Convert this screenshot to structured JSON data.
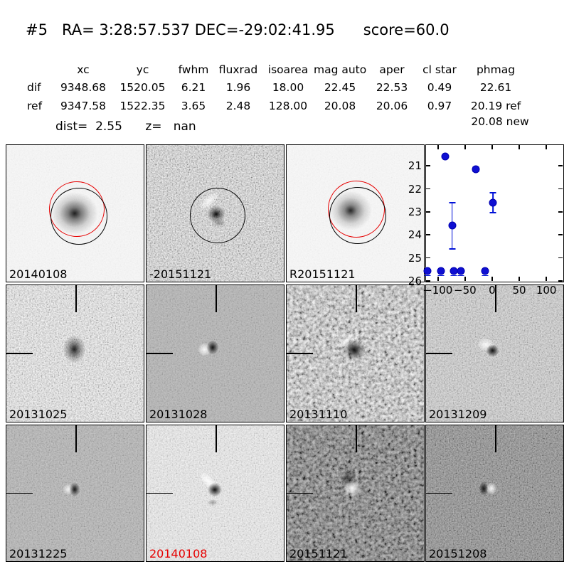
{
  "header": {
    "title": "#5   RA= 3:28:57.537 DEC=-29:02:41.95      score=60.0"
  },
  "table": {
    "columns": [
      "xc",
      "yc",
      "fwhm",
      "fluxrad",
      "isoarea",
      "mag auto",
      "aper",
      "cl star",
      "phmag"
    ],
    "rows": [
      {
        "label": "dif",
        "values": [
          "9348.68",
          "1520.05",
          "6.21",
          "1.96",
          "18.00",
          "22.45",
          "22.53",
          "0.49",
          "22.61"
        ]
      },
      {
        "label": "ref",
        "values": [
          "9347.58",
          "1522.35",
          "3.65",
          "2.48",
          "128.00",
          "20.08",
          "20.06",
          "0.97",
          "20.19 ref"
        ]
      }
    ],
    "extra_phmag": "20.08 new",
    "dist_line": "dist=  2.55      z=   nan"
  },
  "panels": [
    {
      "id": "new-image",
      "label": "20140108",
      "label_color": "#000000",
      "bg": "#f0f0f0"
    },
    {
      "id": "diff-image",
      "label": "-20151121",
      "label_color": "#000000",
      "bg": "#b3b3b3"
    },
    {
      "id": "ref-image",
      "label": "R20151121",
      "label_color": "#000000",
      "bg": "#f1f1f1"
    },
    {
      "id": "light-curve",
      "label": "",
      "label_color": "#000000",
      "bg": "#ffffff"
    },
    {
      "id": "epoch-1",
      "label": "20131025",
      "label_color": "#000000",
      "bg": "#c3c3c3"
    },
    {
      "id": "epoch-2",
      "label": "20131028",
      "label_color": "#000000",
      "bg": "#a9a9a9"
    },
    {
      "id": "epoch-3",
      "label": "20131110",
      "label_color": "#000000",
      "bg": "#9f9f9f"
    },
    {
      "id": "epoch-4",
      "label": "20131209",
      "label_color": "#000000",
      "bg": "#b4b4b4"
    },
    {
      "id": "epoch-5",
      "label": "20131225",
      "label_color": "#000000",
      "bg": "#a8a8a8"
    },
    {
      "id": "epoch-6",
      "label": "20140108",
      "label_color": "#e60000",
      "bg": "#d2d2d2"
    },
    {
      "id": "epoch-7",
      "label": "20151121",
      "label_color": "#000000",
      "bg": "#5f5f5f"
    },
    {
      "id": "epoch-8",
      "label": "20151208",
      "label_color": "#000000",
      "bg": "#838383"
    }
  ],
  "chart_data": {
    "type": "scatter",
    "title": "",
    "xlabel": "",
    "ylabel": "",
    "xlim": [
      -122,
      130
    ],
    "ylim": [
      26.0,
      20.1
    ],
    "y_axis_inverted": true,
    "grid": false,
    "legend": "none",
    "xticks": [
      -100,
      -50,
      0,
      50,
      100
    ],
    "yticks": [
      21,
      22,
      23,
      24,
      25,
      26
    ],
    "marker_color": "#0f0fd2",
    "series": [
      {
        "name": "detections",
        "points": [
          {
            "x": -86,
            "y": 20.6,
            "yerr": 0.0
          },
          {
            "x": -30,
            "y": 21.15,
            "yerr": 0.1
          },
          {
            "x": -74,
            "y": 23.6,
            "yerr": 1.0
          },
          {
            "x": 2,
            "y": 22.6,
            "yerr": 0.44
          }
        ]
      },
      {
        "name": "upper-limits",
        "limit_y": 25.56,
        "x": [
          -120,
          -94,
          -71,
          -58,
          -13
        ]
      }
    ]
  }
}
